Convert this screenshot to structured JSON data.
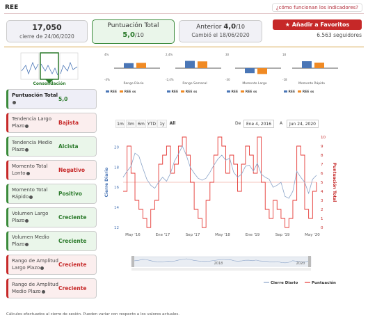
{
  "header": {
    "ticker": "REE",
    "how_link": "¿cómo funcionan los indicadores?"
  },
  "price_card": {
    "price": "17,050",
    "date_text": "cierre de 24/06/2020"
  },
  "score_card": {
    "label": "Puntuación Total",
    "value": "5,0",
    "max": "/10"
  },
  "prev_card": {
    "label": "Anterior",
    "value": "4,0",
    "max": "/10",
    "changed": "Cambió el 18/06/2020"
  },
  "favorites": {
    "button": "Añadir a Favoritos",
    "followers": "6.563 seguidores"
  },
  "mini_chart": {
    "label": "Consolidación"
  },
  "bar_charts": [
    {
      "caption": "Rango Diario",
      "top": "4%",
      "bottom": "-4%",
      "left_value": 1.6,
      "right_value": 1.7,
      "ymax": 4
    },
    {
      "caption": "Rango Semanal",
      "top": "2,4%",
      "bottom": "-2,4%",
      "left_value": 1.4,
      "right_value": 1.3,
      "ymax": 2.4
    },
    {
      "caption": "Momento Largo",
      "top": "30",
      "bottom": "-30",
      "left_value": -12,
      "right_value": -14,
      "ymax": 30
    },
    {
      "caption": "Momento Rápido",
      "top": "18",
      "bottom": "-18",
      "left_value": 10,
      "right_value": 8,
      "ymax": 18
    }
  ],
  "bar_legend": {
    "a": "REE",
    "b": "REE ss"
  },
  "colors": {
    "blue": "#4a76b6",
    "orange": "#f08a24",
    "green": "#2b7a2b",
    "red": "#c62828"
  },
  "indicators": [
    {
      "name": "Puntuación Total",
      "value": "5,0",
      "tone": "lav"
    },
    {
      "name": "Tendencia Largo Plazo",
      "value": "Bajista",
      "tone": "red"
    },
    {
      "name": "Tendencia Medio Plazo",
      "value": "Alcista",
      "tone": "green"
    },
    {
      "name": "Momento Total Lonto",
      "value": "Negativo",
      "tone": "red"
    },
    {
      "name": "Momento Total Rápido",
      "value": "Positivo",
      "tone": "green"
    },
    {
      "name": "Volumen Largo Plazo",
      "value": "Creciente",
      "tone": "green"
    },
    {
      "name": "Volumen Medio Plazo",
      "value": "Creciente",
      "tone": "green"
    },
    {
      "name": "Rango de Amplitud Largo Plazo",
      "value": "Creciente",
      "tone": "red"
    },
    {
      "name": "Rango de Amplitud Medio Plazo",
      "value": "Creciente",
      "tone": "red"
    }
  ],
  "range_selector": {
    "buttons": [
      "1m",
      "3m",
      "6m",
      "YTD",
      "1y",
      "All"
    ],
    "active": "All",
    "from_label": "De",
    "from": "Ene 4, 2016",
    "to_label": "A",
    "to": "Jun 24, 2020"
  },
  "chart_data": {
    "type": "line",
    "x_ticks": [
      "May '16",
      "Ene '17",
      "Sep '17",
      "May '18",
      "Ene '19",
      "Sep '19",
      "May '20"
    ],
    "y_left": {
      "label": "Cierre Diario",
      "ticks": [
        12,
        14,
        16,
        18,
        20
      ],
      "range": [
        12,
        21
      ]
    },
    "y_right": {
      "label": "Puntuación Total",
      "ticks": [
        0,
        1,
        2,
        3,
        4,
        5,
        6,
        7,
        8,
        9,
        10
      ],
      "range": [
        0,
        10
      ]
    },
    "navigator_labels": [
      "2018",
      "2020"
    ],
    "series": [
      {
        "name": "Cierre Diario",
        "color": "#8aa3c8",
        "values": [
          17.0,
          17.6,
          18.1,
          19.4,
          19.1,
          17.9,
          16.8,
          16.2,
          15.9,
          16.5,
          17.0,
          16.6,
          17.4,
          18.6,
          19.3,
          20.1,
          19.2,
          18.0,
          17.4,
          16.9,
          16.7,
          16.9,
          17.5,
          18.2,
          18.8,
          19.2,
          18.7,
          18.9,
          17.5,
          17.0,
          17.3,
          18.1,
          18.2,
          17.6,
          18.4,
          17.3,
          17.0,
          16.8,
          16.0,
          16.2,
          16.5,
          15.1,
          14.9,
          15.6,
          17.6,
          17.0,
          16.5,
          15.4,
          16.8,
          17.2
        ]
      },
      {
        "name": "Puntuación",
        "color": "#e53935",
        "values": [
          4,
          9,
          6,
          3,
          2,
          1,
          0,
          2,
          3,
          7,
          8,
          9,
          6,
          7,
          9,
          10,
          8,
          5,
          2,
          1,
          0,
          3,
          5,
          8,
          10,
          9,
          6,
          8,
          7,
          4,
          7,
          9,
          8,
          6,
          10,
          5,
          2,
          1,
          3,
          2,
          1,
          0,
          1,
          3,
          9,
          8,
          2,
          1,
          4,
          5
        ]
      }
    ],
    "legend": [
      "Cierre Diario",
      "Puntuación"
    ],
    "legend_position": "bottom-right"
  },
  "footnote": "Cálculos efectuados al cierre de sesión. Pueden variar con respecto a los valores actuales."
}
